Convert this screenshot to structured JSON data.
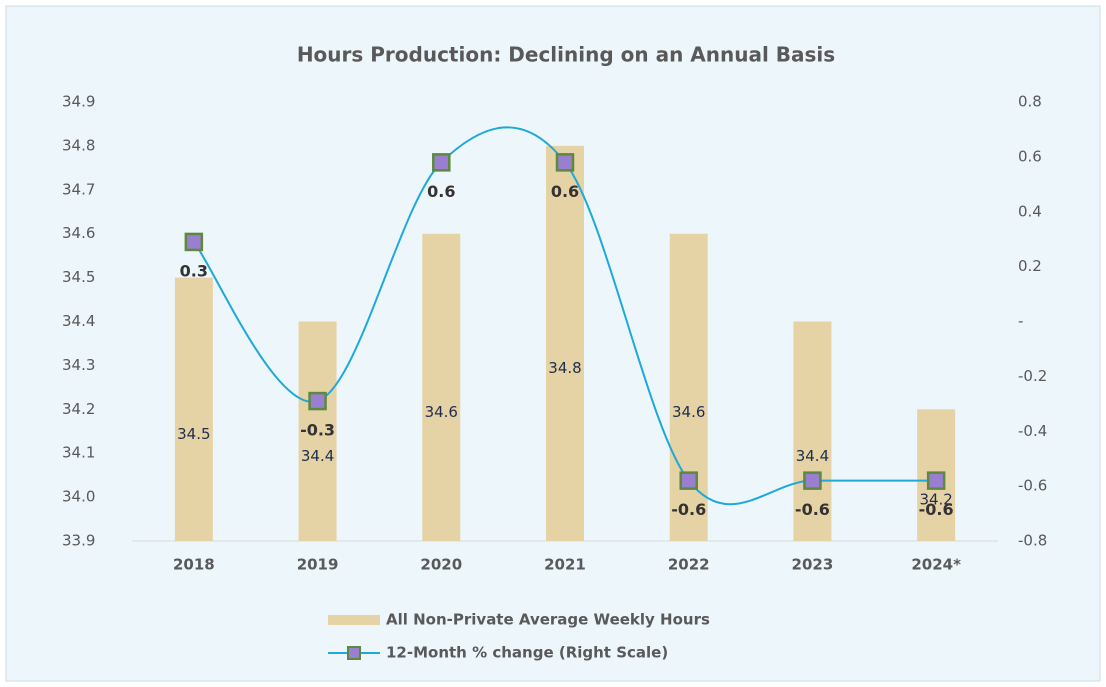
{
  "chart_data": {
    "type": "bar+line",
    "title": "Hours Production: Declining on an Annual Basis",
    "categories": [
      "2018",
      "2019",
      "2020",
      "2021",
      "2022",
      "2023",
      "2024*"
    ],
    "series": [
      {
        "name": "All Non-Private Average Weekly Hours",
        "type": "bar",
        "color": "#e6d3a5",
        "axis": "y",
        "values": [
          34.5,
          34.4,
          34.6,
          34.8,
          34.6,
          34.4,
          34.2
        ]
      },
      {
        "name": "12-Month % change (Right Scale)",
        "type": "line",
        "color": "#1ea9d9",
        "marker_color": "#9a7fd1",
        "marker_edge": "#5b8a3c",
        "axis": "y2",
        "values": [
          0.29,
          -0.29,
          0.58,
          0.58,
          -0.58,
          -0.58,
          -0.58
        ],
        "value_labels": [
          "0.3",
          "-0.3",
          "0.6",
          "0.6",
          "-0.6",
          "-0.6",
          "-0.6"
        ]
      }
    ],
    "ylim": [
      33.9,
      34.9
    ],
    "yticks": [
      33.9,
      {
        "value": 34,
        "label": "34.0"
      },
      34.1,
      34.2,
      34.3,
      34.4,
      34.5,
      34.6,
      34.7,
      34.8,
      34.9
    ],
    "y2lim": [
      -0.8,
      0.8
    ],
    "y2ticks": [
      -0.8,
      -0.6,
      -0.4,
      -0.2,
      {
        "value": 0,
        "label": "-"
      },
      0.2,
      0.4,
      0.6,
      0.8
    ],
    "legend": "bottom",
    "grid": false
  }
}
